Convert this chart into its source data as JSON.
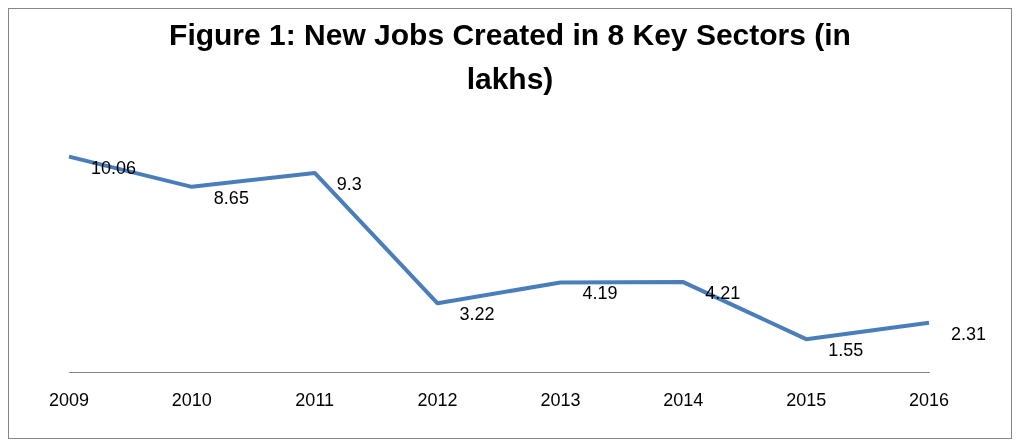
{
  "chart_data": {
    "type": "line",
    "title": "Figure 1: New Jobs Created in 8 Key Sectors  (in lakhs)",
    "categories": [
      "2009",
      "2010",
      "2011",
      "2012",
      "2013",
      "2014",
      "2015",
      "2016"
    ],
    "series": [
      {
        "color": "#4a7ebb",
        "values": [
          10.06,
          8.65,
          9.3,
          3.22,
          4.19,
          4.21,
          1.55,
          2.31
        ]
      }
    ],
    "data_labels": true,
    "grid": false,
    "legend": false,
    "marker": "none"
  }
}
